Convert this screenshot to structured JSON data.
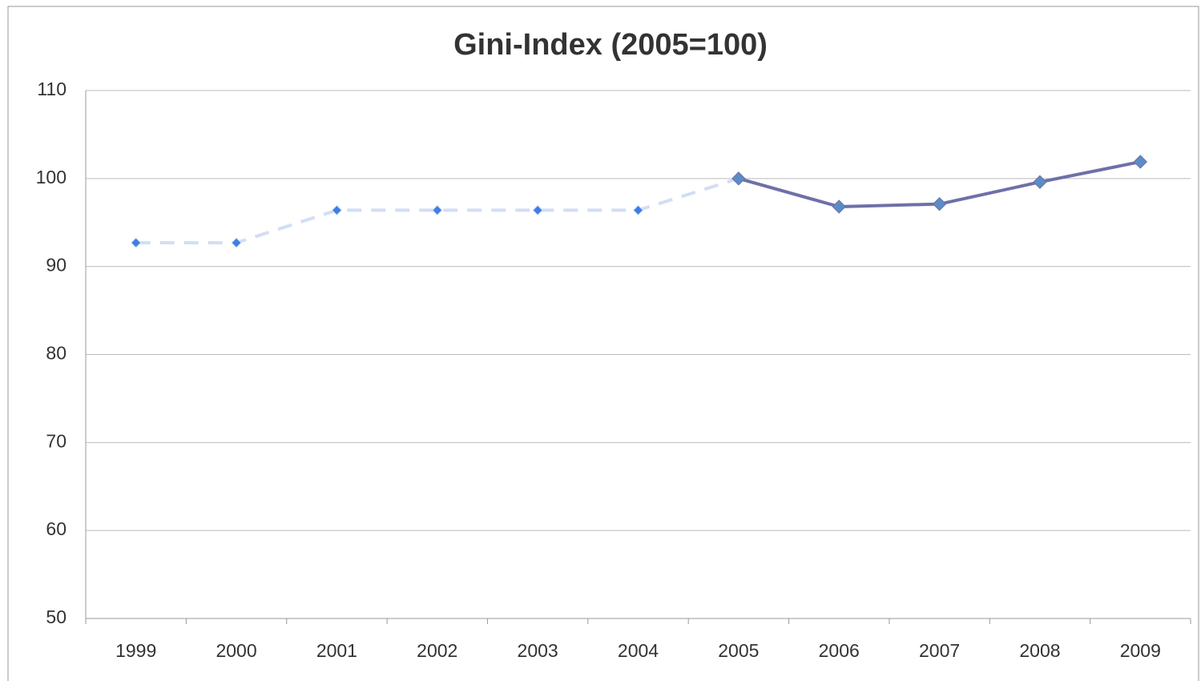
{
  "chart_data": {
    "type": "line",
    "title": "Gini-Index (2005=100)",
    "categories": [
      "1999",
      "2000",
      "2001",
      "2002",
      "2003",
      "2004",
      "2005",
      "2006",
      "2007",
      "2008",
      "2009"
    ],
    "series": [
      {
        "color": "#d2def5",
        "marker_color": "#3d7fe3",
        "line_style": "dashed",
        "marker_size": 6,
        "values": [
          92.7,
          92.7,
          96.4,
          96.4,
          96.4,
          96.4,
          100,
          null,
          null,
          null,
          null
        ]
      },
      {
        "color": "#6e70a8",
        "marker_color": "#5b8cc6",
        "line_style": "solid",
        "marker_size": 8,
        "values": [
          null,
          null,
          null,
          null,
          null,
          null,
          100,
          96.8,
          97.1,
          99.6,
          101.9
        ]
      }
    ],
    "ylim": [
      50,
      110
    ],
    "yticks": [
      50,
      60,
      70,
      80,
      90,
      100,
      110
    ],
    "grid": true
  }
}
